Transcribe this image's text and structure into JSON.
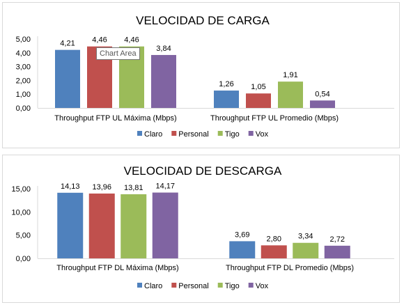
{
  "chart_data": [
    {
      "type": "bar",
      "title": "VELOCIDAD DE CARGA",
      "categories": [
        "Throughput FTP UL Máxima (Mbps)",
        "Throughput FTP UL Promedio (Mbps)"
      ],
      "series": [
        {
          "name": "Claro",
          "values": [
            4.21,
            1.26
          ],
          "labels": [
            "4,21",
            "1,26"
          ],
          "color": "#4f81bd"
        },
        {
          "name": "Personal",
          "values": [
            4.46,
            1.05
          ],
          "labels": [
            "4,46",
            "1,05"
          ],
          "color": "#c0504d"
        },
        {
          "name": "Tigo",
          "values": [
            4.46,
            1.91
          ],
          "labels": [
            "4,46",
            "1,91"
          ],
          "color": "#9bbb59"
        },
        {
          "name": "Vox",
          "values": [
            3.84,
            0.54
          ],
          "labels": [
            "3,84",
            "0,54"
          ],
          "color": "#8064a2"
        }
      ],
      "ylim": [
        0,
        5
      ],
      "yticks": [
        0,
        1,
        2,
        3,
        4,
        5
      ],
      "ytick_labels": [
        "0,00",
        "1,00",
        "2,00",
        "3,00",
        "4,00",
        "5,00"
      ],
      "xlabel": "",
      "ylabel": "",
      "grid": false,
      "legend": "bottom"
    },
    {
      "type": "bar",
      "title": "VELOCIDAD DE DESCARGA",
      "categories": [
        "Throughput FTP DL Máxima (Mbps)",
        "Throughput FTP DL Promedio (Mbps)"
      ],
      "series": [
        {
          "name": "Claro",
          "values": [
            14.13,
            3.69
          ],
          "labels": [
            "14,13",
            "3,69"
          ],
          "color": "#4f81bd"
        },
        {
          "name": "Personal",
          "values": [
            13.96,
            2.8
          ],
          "labels": [
            "13,96",
            "2,80"
          ],
          "color": "#c0504d"
        },
        {
          "name": "Tigo",
          "values": [
            13.81,
            3.34
          ],
          "labels": [
            "13,81",
            "3,34"
          ],
          "color": "#9bbb59"
        },
        {
          "name": "Vox",
          "values": [
            14.17,
            2.72
          ],
          "labels": [
            "14,17",
            "2,72"
          ],
          "color": "#8064a2"
        }
      ],
      "ylim": [
        0,
        15
      ],
      "yticks": [
        0,
        5,
        10,
        15
      ],
      "ytick_labels": [
        "0,00",
        "5,00",
        "10,00",
        "15,00"
      ],
      "xlabel": "",
      "ylabel": "",
      "grid": false,
      "legend": "bottom"
    }
  ],
  "tooltip": {
    "text": "Chart Area"
  }
}
